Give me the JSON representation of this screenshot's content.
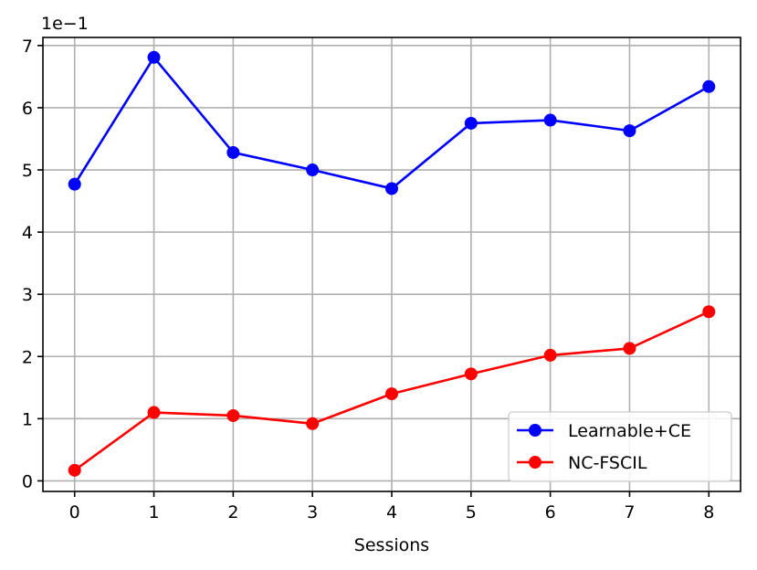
{
  "chart_data": {
    "type": "line",
    "xlabel": "Sessions",
    "ylabel": "",
    "offset_text": "1e−1",
    "x": [
      0,
      1,
      2,
      3,
      4,
      5,
      6,
      7,
      8
    ],
    "xlim": [
      -0.4,
      8.4
    ],
    "ylim": [
      -0.17,
      7.13
    ],
    "xticks": [
      "0",
      "1",
      "2",
      "3",
      "4",
      "5",
      "6",
      "7",
      "8"
    ],
    "yticks": [
      "0",
      "1",
      "2",
      "3",
      "4",
      "5",
      "6",
      "7"
    ],
    "grid": true,
    "legend_position": "lower-right",
    "series": [
      {
        "name": "Learnable+CE",
        "color": "#0000ff",
        "values": [
          4.77,
          6.81,
          5.28,
          5.0,
          4.7,
          5.75,
          5.8,
          5.63,
          6.34
        ]
      },
      {
        "name": "NC-FSCIL",
        "color": "#ff0000",
        "values": [
          0.17,
          1.1,
          1.05,
          0.92,
          1.4,
          1.72,
          2.02,
          2.13,
          2.72
        ]
      }
    ]
  }
}
